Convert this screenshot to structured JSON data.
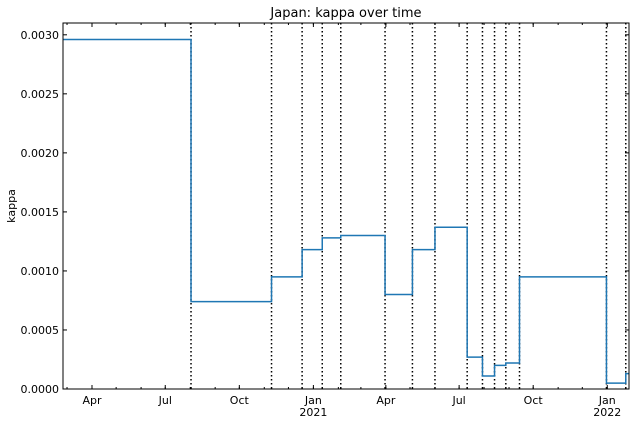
{
  "chart_data": {
    "type": "line",
    "title": "Japan: kappa over time",
    "xlabel": "",
    "ylabel": "kappa",
    "xlim": [
      "2020-02-25",
      "2022-01-28"
    ],
    "ylim": [
      0,
      0.0031
    ],
    "grid": false,
    "legend": "none",
    "line_color": "#1f77b4",
    "vline_color": "#000000",
    "y_ticks": [
      {
        "value": 0.0,
        "label": "0.0000"
      },
      {
        "value": 0.0005,
        "label": "0.0005"
      },
      {
        "value": 0.001,
        "label": "0.0010"
      },
      {
        "value": 0.0015,
        "label": "0.0015"
      },
      {
        "value": 0.002,
        "label": "0.0020"
      },
      {
        "value": 0.0025,
        "label": "0.0025"
      },
      {
        "value": 0.003,
        "label": "0.0030"
      }
    ],
    "x_ticks": [
      {
        "date": "2020-04-01",
        "label": "Apr"
      },
      {
        "date": "2020-07-01",
        "label": "Jul"
      },
      {
        "date": "2020-10-01",
        "label": "Oct"
      },
      {
        "date": "2021-01-01",
        "label": "Jan\n2021"
      },
      {
        "date": "2021-04-01",
        "label": "Apr"
      },
      {
        "date": "2021-07-01",
        "label": "Jul"
      },
      {
        "date": "2021-10-01",
        "label": "Oct"
      },
      {
        "date": "2022-01-01",
        "label": "Jan\n2022"
      }
    ],
    "change_points": [
      "2020-08-02",
      "2020-11-10",
      "2020-12-18",
      "2021-01-12",
      "2021-02-04",
      "2021-03-31",
      "2021-05-04",
      "2021-06-01",
      "2021-07-11",
      "2021-07-30",
      "2021-08-14",
      "2021-08-28",
      "2021-09-14",
      "2021-12-31",
      "2022-01-24"
    ],
    "series": [
      {
        "x": [
          "2020-02-25",
          "2020-08-02",
          "2020-11-10",
          "2020-12-18",
          "2021-01-12",
          "2021-02-04",
          "2021-03-31",
          "2021-05-04",
          "2021-06-01",
          "2021-07-11",
          "2021-07-30",
          "2021-08-14",
          "2021-08-28",
          "2021-09-14",
          "2021-12-31",
          "2022-01-24",
          "2022-01-28"
        ],
        "y": [
          0.00296,
          0.00074,
          0.00095,
          0.00118,
          0.00128,
          0.0013,
          0.0008,
          0.00118,
          0.00137,
          0.00027,
          0.00011,
          0.0002,
          0.00022,
          0.00095,
          5e-05,
          0.00013,
          0.00013
        ]
      }
    ]
  }
}
